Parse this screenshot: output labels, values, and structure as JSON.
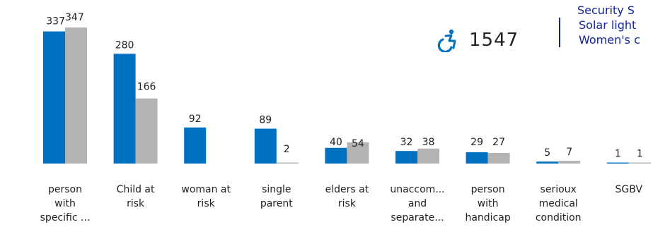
{
  "chart_data": {
    "type": "bar",
    "categories": [
      [
        "person",
        "with",
        "specific ..."
      ],
      [
        "Child at",
        "risk"
      ],
      [
        "woman at",
        "risk"
      ],
      [
        "single",
        "parent"
      ],
      [
        "elders at",
        "risk"
      ],
      [
        "unaccom...",
        "and",
        "separate..."
      ],
      [
        "person",
        "with",
        "handicap"
      ],
      [
        "serioux",
        "medical",
        "condition"
      ],
      [
        "SGBV"
      ]
    ],
    "series": [
      {
        "color": "#0070c0",
        "values": [
          337,
          280,
          92,
          89,
          40,
          32,
          29,
          5,
          1
        ]
      },
      {
        "color": "#b3b3b3",
        "values": [
          347,
          166,
          null,
          2,
          54,
          38,
          27,
          7,
          1
        ]
      }
    ],
    "ylim": [
      0,
      347
    ],
    "grid": false,
    "legend": "none"
  },
  "kpi": {
    "icon": "wheelchair-icon",
    "value": "1547",
    "color": "#0070c0"
  },
  "side_list": {
    "items": [
      "Security S",
      "Solar light",
      "Women's c"
    ],
    "color": "#14249b"
  }
}
